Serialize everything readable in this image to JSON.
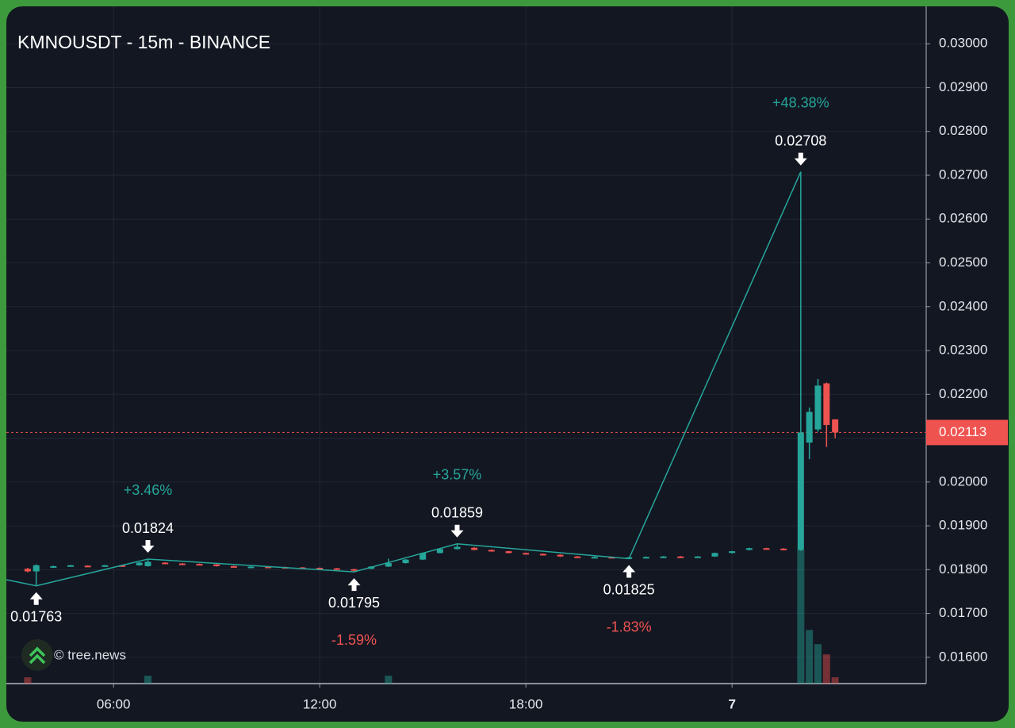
{
  "chart_data": {
    "type": "candlestick",
    "title": "KMNOUSDT - 15m - BINANCE",
    "watermark": "© tree.news",
    "up_color": "#26a69a",
    "down_color": "#ef5350",
    "grid": true,
    "xlim": [
      2.88,
      29.65
    ],
    "xticks": [
      {
        "value": 6,
        "label": "06:00"
      },
      {
        "value": 12,
        "label": "12:00"
      },
      {
        "value": 18,
        "label": "18:00"
      },
      {
        "value": 24,
        "label": "7"
      }
    ],
    "ylim": [
      0.0154,
      0.0308
    ],
    "yticks": [
      {
        "value": 0.016,
        "label": "0.01600"
      },
      {
        "value": 0.017,
        "label": "0.01700"
      },
      {
        "value": 0.018,
        "label": "0.01800"
      },
      {
        "value": 0.019,
        "label": "0.01900"
      },
      {
        "value": 0.02,
        "label": "0.02000"
      },
      {
        "value": 0.021,
        "label": "0.02100"
      },
      {
        "value": 0.022,
        "label": "0.02200"
      },
      {
        "value": 0.023,
        "label": "0.02300"
      },
      {
        "value": 0.024,
        "label": "0.02400"
      },
      {
        "value": 0.025,
        "label": "0.02500"
      },
      {
        "value": 0.026,
        "label": "0.02600"
      },
      {
        "value": 0.027,
        "label": "0.02700"
      },
      {
        "value": 0.028,
        "label": "0.02800"
      },
      {
        "value": 0.029,
        "label": "0.02900"
      },
      {
        "value": 0.03,
        "label": "0.03000"
      }
    ],
    "candles": {
      "x": [
        3.5,
        3.75,
        4.25,
        4.75,
        5.25,
        5.75,
        6.25,
        6.75,
        7.0,
        7.5,
        8.0,
        8.5,
        9.0,
        9.5,
        10.0,
        10.5,
        11.0,
        11.5,
        12.0,
        12.5,
        13.0,
        13.5,
        14.0,
        14.5,
        15.0,
        15.5,
        16.0,
        16.5,
        17.0,
        17.5,
        18.0,
        18.5,
        19.0,
        19.5,
        20.0,
        20.5,
        21.0,
        21.5,
        22.0,
        22.5,
        23.0,
        23.5,
        24.0,
        24.5,
        25.0,
        25.5,
        26.0,
        26.25,
        26.5,
        26.75,
        27.0
      ],
      "open": [
        0.01802,
        0.01796,
        0.01805,
        0.01808,
        0.01809,
        0.01808,
        0.0181,
        0.0181,
        0.01808,
        0.01816,
        0.01814,
        0.01813,
        0.01812,
        0.01808,
        0.01806,
        0.01807,
        0.01806,
        0.01805,
        0.01804,
        0.01803,
        0.01801,
        0.01802,
        0.01807,
        0.01815,
        0.01823,
        0.01838,
        0.01847,
        0.0185,
        0.01845,
        0.01842,
        0.01838,
        0.01836,
        0.01834,
        0.0183,
        0.01828,
        0.01829,
        0.01827,
        0.01828,
        0.01829,
        0.0183,
        0.01829,
        0.0183,
        0.01838,
        0.01845,
        0.01849,
        0.01848,
        0.01845,
        0.0209,
        0.0212,
        0.02225,
        0.02143
      ],
      "high": [
        0.01804,
        0.01812,
        0.01809,
        0.01811,
        0.0181,
        0.01811,
        0.01811,
        0.01817,
        0.01824,
        0.01817,
        0.01815,
        0.01814,
        0.01813,
        0.01809,
        0.01808,
        0.01808,
        0.01807,
        0.01806,
        0.01805,
        0.01804,
        0.01802,
        0.01808,
        0.01825,
        0.01824,
        0.01839,
        0.01848,
        0.01859,
        0.01851,
        0.01846,
        0.01843,
        0.01839,
        0.01837,
        0.01835,
        0.01831,
        0.0183,
        0.0183,
        0.01829,
        0.0183,
        0.01831,
        0.01831,
        0.01831,
        0.01839,
        0.01843,
        0.0185,
        0.0185,
        0.01849,
        0.02708,
        0.0217,
        0.02235,
        0.02227,
        0.02143
      ],
      "low": [
        0.01794,
        0.01763,
        0.01804,
        0.01807,
        0.01806,
        0.01807,
        0.01808,
        0.01809,
        0.01807,
        0.01813,
        0.01812,
        0.01811,
        0.01807,
        0.01805,
        0.01805,
        0.01805,
        0.01804,
        0.01803,
        0.01802,
        0.018,
        0.01795,
        0.01801,
        0.01806,
        0.01814,
        0.01822,
        0.01837,
        0.01846,
        0.01844,
        0.01841,
        0.01837,
        0.01835,
        0.01833,
        0.01829,
        0.01827,
        0.01827,
        0.01826,
        0.01825,
        0.01827,
        0.01828,
        0.01828,
        0.01828,
        0.01829,
        0.01837,
        0.01844,
        0.01847,
        0.01844,
        0.01843,
        0.02052,
        0.02115,
        0.0208,
        0.021
      ],
      "close": [
        0.01796,
        0.0181,
        0.01808,
        0.0181,
        0.01807,
        0.0181,
        0.01809,
        0.01816,
        0.01818,
        0.01814,
        0.01813,
        0.01812,
        0.01808,
        0.01806,
        0.01807,
        0.01806,
        0.01805,
        0.01804,
        0.01803,
        0.01801,
        0.018,
        0.01807,
        0.01815,
        0.01823,
        0.01838,
        0.01847,
        0.01852,
        0.01845,
        0.01842,
        0.01838,
        0.01836,
        0.01834,
        0.0183,
        0.01828,
        0.01829,
        0.01827,
        0.01828,
        0.01829,
        0.0183,
        0.01829,
        0.0183,
        0.01838,
        0.01842,
        0.01849,
        0.01848,
        0.01845,
        0.02113,
        0.0216,
        0.0222,
        0.0213,
        0.02113
      ]
    },
    "volume": {
      "x": [
        3.5,
        7.0,
        14.0,
        26.0,
        26.25,
        26.5,
        26.75,
        27.0
      ],
      "values": [
        8,
        10,
        10,
        170,
        68,
        50,
        37,
        8
      ]
    },
    "zigzag": {
      "color": "#26a69a",
      "x": [
        2.88,
        3.75,
        7.0,
        13.0,
        16.0,
        21.0,
        26.0
      ],
      "values": [
        0.01777,
        0.01763,
        0.01824,
        0.01795,
        0.01859,
        0.01825,
        0.02708
      ],
      "changes": [
        "+3.46%",
        "-1.59%",
        "+3.57%",
        "-1.83%",
        "+48.38%"
      ]
    },
    "last_price": 0.02113
  }
}
